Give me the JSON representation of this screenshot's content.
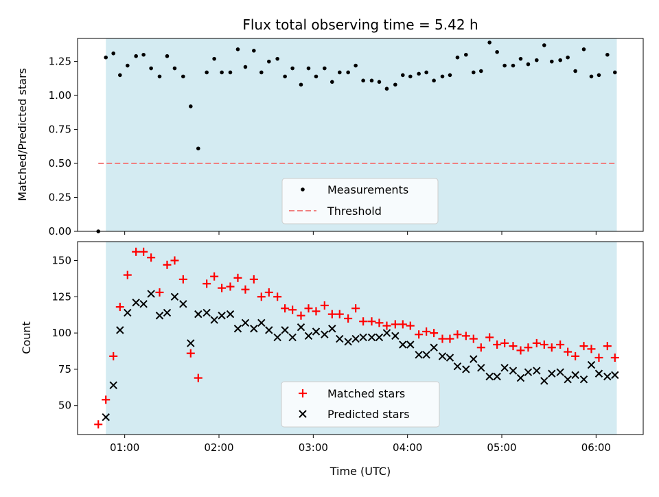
{
  "chart_data": [
    {
      "type": "scatter",
      "title": "Flux total observing time = 5.42 h",
      "ylabel": "Matched/Predicted stars",
      "xlabel": "",
      "ylim": [
        0,
        1.42
      ],
      "xlim": [
        0.5,
        6.5
      ],
      "x_ticks": [
        1,
        2,
        3,
        4,
        5,
        6
      ],
      "y_ticks": [
        0.0,
        0.25,
        0.5,
        0.75,
        1.0,
        1.25
      ],
      "y_tick_labels": [
        "0.00",
        "0.25",
        "0.50",
        "0.75",
        "1.00",
        "1.25"
      ],
      "observing_window": [
        0.8,
        6.22
      ],
      "window_color": "#d4ebf2",
      "legend_position": "lower center",
      "threshold": {
        "name": "Threshold",
        "value": 0.5,
        "x_range": [
          0.72,
          6.22
        ],
        "color": "#f08080"
      },
      "series": [
        {
          "name": "Measurements",
          "color": "#000000",
          "x": [
            0.72,
            0.8,
            0.88,
            0.95,
            1.03,
            1.12,
            1.2,
            1.28,
            1.37,
            1.45,
            1.53,
            1.62,
            1.7,
            1.78,
            1.87,
            1.95,
            2.03,
            2.12,
            2.2,
            2.28,
            2.37,
            2.45,
            2.53,
            2.62,
            2.7,
            2.78,
            2.87,
            2.95,
            3.03,
            3.12,
            3.2,
            3.28,
            3.37,
            3.45,
            3.53,
            3.62,
            3.7,
            3.78,
            3.87,
            3.95,
            4.03,
            4.12,
            4.2,
            4.28,
            4.37,
            4.45,
            4.53,
            4.62,
            4.7,
            4.78,
            4.87,
            4.95,
            5.03,
            5.12,
            5.2,
            5.28,
            5.37,
            5.45,
            5.53,
            5.62,
            5.7,
            5.78,
            5.87,
            5.95,
            6.03,
            6.12,
            6.2
          ],
          "y": [
            0.0,
            1.28,
            1.31,
            1.15,
            1.22,
            1.29,
            1.3,
            1.2,
            1.14,
            1.29,
            1.2,
            1.14,
            0.92,
            0.61,
            1.17,
            1.27,
            1.17,
            1.17,
            1.34,
            1.21,
            1.33,
            1.17,
            1.25,
            1.27,
            1.14,
            1.2,
            1.08,
            1.2,
            1.14,
            1.2,
            1.1,
            1.17,
            1.17,
            1.22,
            1.11,
            1.11,
            1.1,
            1.05,
            1.08,
            1.15,
            1.14,
            1.16,
            1.17,
            1.11,
            1.14,
            1.15,
            1.28,
            1.3,
            1.17,
            1.18,
            1.39,
            1.32,
            1.22,
            1.22,
            1.27,
            1.23,
            1.26,
            1.37,
            1.25,
            1.26,
            1.28,
            1.18,
            1.34,
            1.14,
            1.15,
            1.3,
            1.17
          ]
        }
      ]
    },
    {
      "type": "scatter",
      "title": "",
      "xlabel": "Time (UTC)",
      "ylabel": "Count",
      "ylim": [
        30,
        163
      ],
      "xlim": [
        0.5,
        6.5
      ],
      "x_ticks": [
        1,
        2,
        3,
        4,
        5,
        6
      ],
      "x_tick_labels": [
        "01:00",
        "02:00",
        "03:00",
        "04:00",
        "05:00",
        "06:00"
      ],
      "y_ticks": [
        50,
        75,
        100,
        125,
        150
      ],
      "y_tick_labels": [
        "50",
        "75",
        "100",
        "125",
        "150"
      ],
      "observing_window": [
        0.8,
        6.22
      ],
      "window_color": "#d4ebf2",
      "legend_position": "lower center",
      "series": [
        {
          "name": "Matched stars",
          "marker": "plus",
          "color": "#ff0000",
          "x": [
            0.72,
            0.8,
            0.88,
            0.95,
            1.03,
            1.12,
            1.2,
            1.28,
            1.37,
            1.45,
            1.53,
            1.62,
            1.7,
            1.78,
            1.87,
            1.95,
            2.03,
            2.12,
            2.2,
            2.28,
            2.37,
            2.45,
            2.53,
            2.62,
            2.7,
            2.78,
            2.87,
            2.95,
            3.03,
            3.12,
            3.2,
            3.28,
            3.37,
            3.45,
            3.53,
            3.62,
            3.7,
            3.78,
            3.87,
            3.95,
            4.03,
            4.12,
            4.2,
            4.28,
            4.37,
            4.45,
            4.53,
            4.62,
            4.7,
            4.78,
            4.87,
            4.95,
            5.03,
            5.12,
            5.2,
            5.28,
            5.37,
            5.45,
            5.53,
            5.62,
            5.7,
            5.78,
            5.87,
            5.95,
            6.03,
            6.12,
            6.2
          ],
          "y": [
            37,
            54,
            84,
            118,
            140,
            156,
            156,
            152,
            128,
            147,
            150,
            137,
            86,
            69,
            134,
            139,
            131,
            132,
            138,
            130,
            137,
            125,
            128,
            125,
            117,
            116,
            112,
            117,
            115,
            119,
            113,
            113,
            110,
            117,
            108,
            108,
            107,
            105,
            106,
            106,
            105,
            99,
            101,
            100,
            96,
            96,
            99,
            98,
            96,
            90,
            97,
            92,
            93,
            91,
            88,
            90,
            93,
            92,
            90,
            92,
            87,
            84,
            91,
            89,
            83,
            91,
            83
          ]
        },
        {
          "name": "Predicted stars",
          "marker": "x",
          "color": "#000000",
          "x": [
            0.8,
            0.88,
            0.95,
            1.03,
            1.12,
            1.2,
            1.28,
            1.37,
            1.45,
            1.53,
            1.62,
            1.7,
            1.78,
            1.87,
            1.95,
            2.03,
            2.12,
            2.2,
            2.28,
            2.37,
            2.45,
            2.53,
            2.62,
            2.7,
            2.78,
            2.87,
            2.95,
            3.03,
            3.12,
            3.2,
            3.28,
            3.37,
            3.45,
            3.53,
            3.62,
            3.7,
            3.78,
            3.87,
            3.95,
            4.03,
            4.12,
            4.2,
            4.28,
            4.37,
            4.45,
            4.53,
            4.62,
            4.7,
            4.78,
            4.87,
            4.95,
            5.03,
            5.12,
            5.2,
            5.28,
            5.37,
            5.45,
            5.53,
            5.62,
            5.7,
            5.78,
            5.87,
            5.95,
            6.03,
            6.12,
            6.2
          ],
          "y": [
            42,
            64,
            102,
            114,
            121,
            120,
            127,
            112,
            114,
            125,
            120,
            93,
            113,
            114,
            109,
            112,
            113,
            103,
            107,
            103,
            107,
            102,
            97,
            102,
            97,
            104,
            98,
            101,
            99,
            103,
            96,
            94,
            96,
            97,
            97,
            97,
            100,
            98,
            92,
            92,
            85,
            85,
            90,
            84,
            83,
            77,
            75,
            82,
            76,
            70,
            70,
            76,
            74,
            69,
            73,
            74,
            67,
            72,
            73,
            68,
            71,
            68,
            78,
            72,
            70,
            71
          ]
        }
      ]
    }
  ]
}
